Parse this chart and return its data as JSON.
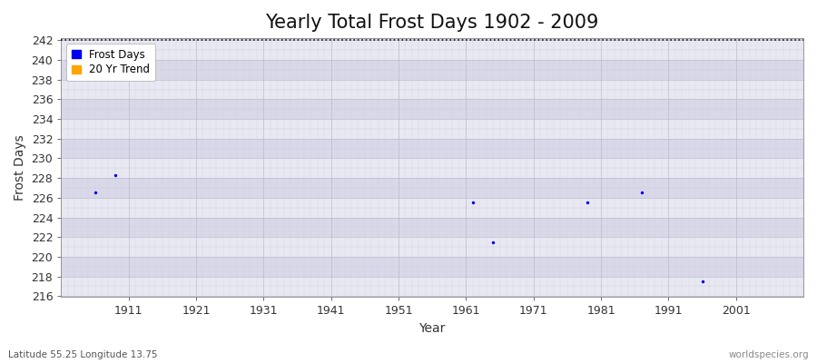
{
  "title": "Yearly Total Frost Days 1902 - 2009",
  "xlabel": "Year",
  "ylabel": "Frost Days",
  "bottom_left": "Latitude 55.25 Longitude 13.75",
  "bottom_right": "worldspecies.org",
  "figure_bg_color": "#ffffff",
  "plot_bg_color": "#dcdce8",
  "ylim": [
    216,
    242
  ],
  "xlim": [
    1901,
    2011
  ],
  "yticks": [
    216,
    218,
    220,
    222,
    224,
    226,
    228,
    230,
    232,
    234,
    236,
    238,
    240,
    242
  ],
  "xticks": [
    1911,
    1921,
    1931,
    1941,
    1951,
    1961,
    1971,
    1981,
    1991,
    2001
  ],
  "hline_y": 242,
  "hline_color": "#111111",
  "data_points": [
    {
      "year": 1906,
      "value": 226.5
    },
    {
      "year": 1909,
      "value": 228.3
    },
    {
      "year": 1962,
      "value": 225.5
    },
    {
      "year": 1965,
      "value": 221.5
    },
    {
      "year": 1979,
      "value": 225.5
    },
    {
      "year": 1987,
      "value": 226.5
    },
    {
      "year": 1996,
      "value": 217.5
    }
  ],
  "point_color": "#0000ee",
  "point_size": 6,
  "legend_frost_color": "#0000ee",
  "legend_trend_color": "#ffa500",
  "title_fontsize": 15,
  "label_fontsize": 10,
  "tick_fontsize": 9,
  "grid_major_color": "#bbbbcc",
  "grid_minor_color": "#ccccdd",
  "band_light_color": "#e8e8f2",
  "band_dark_color": "#d8d8e8"
}
